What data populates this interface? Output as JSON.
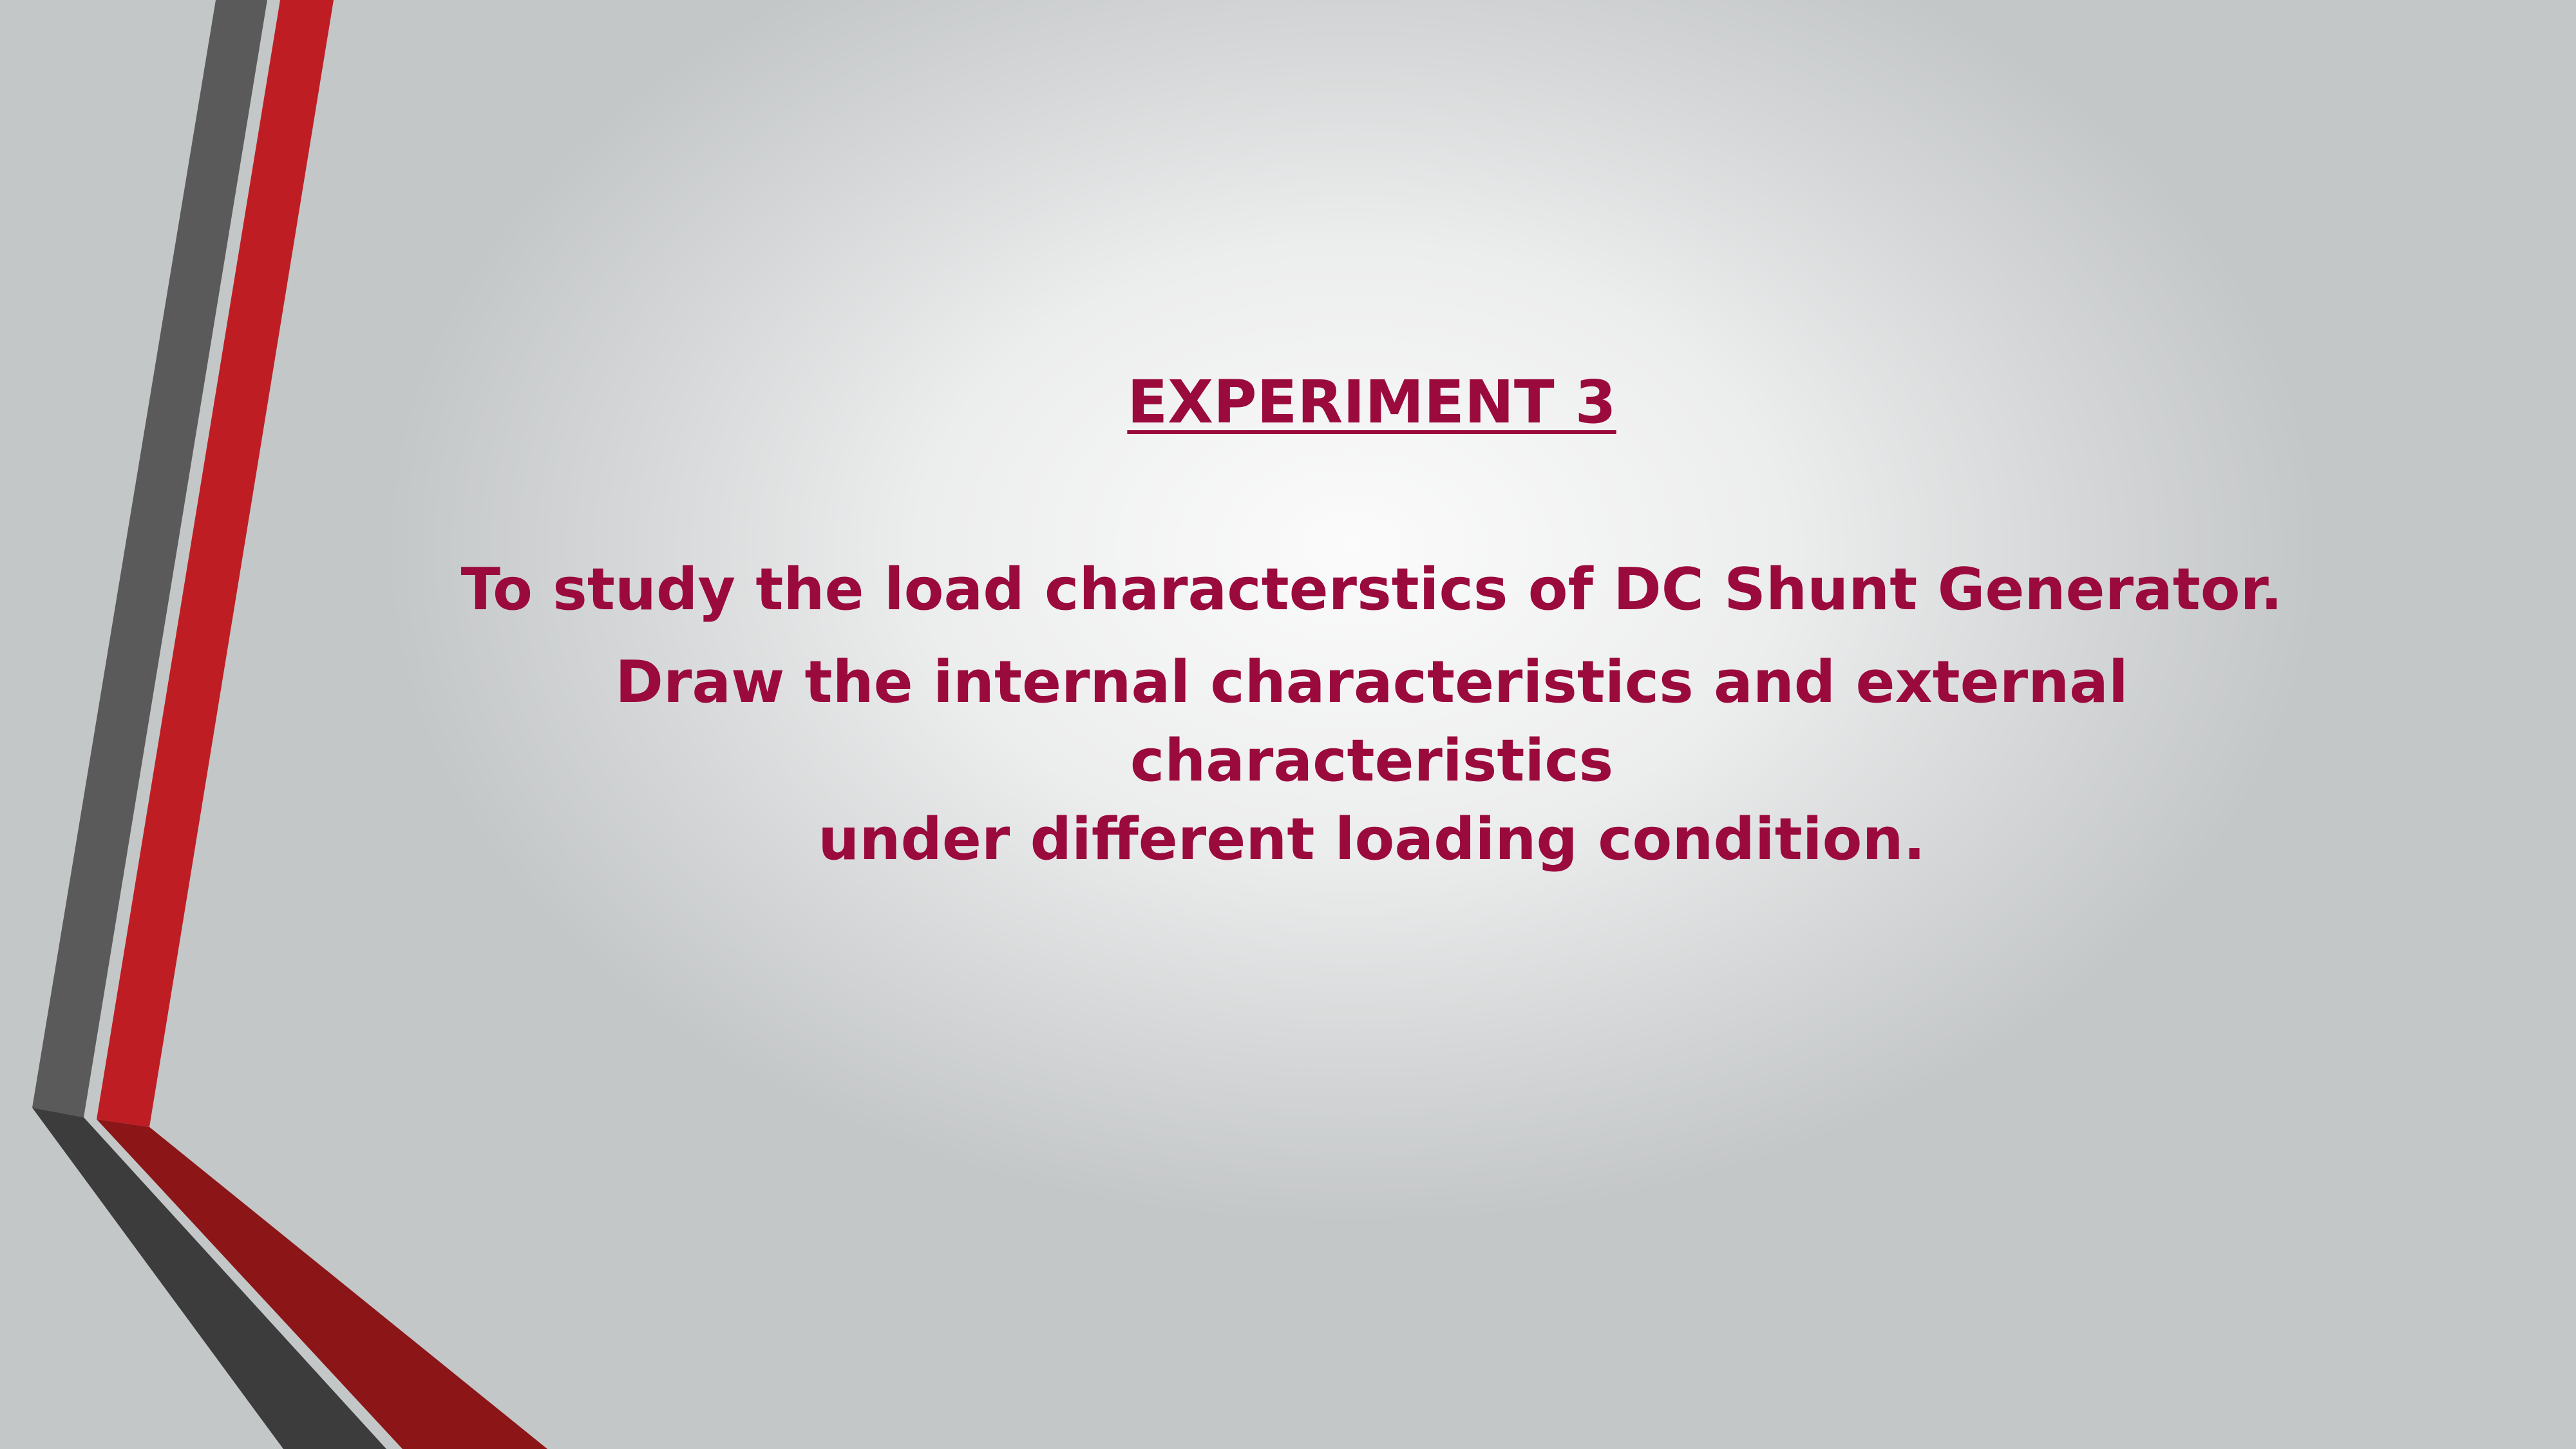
{
  "slide": {
    "title": "EXPERIMENT 3",
    "objective_line_1": "To study the load characterstics of DC Shunt Generator.",
    "objective_line_2a": "Draw the internal characteristics and external characteristics",
    "objective_line_2b": "under different loading condition."
  },
  "colors": {
    "text_accent": "#9b0a3d",
    "stripe_gray": "#5a5a5a",
    "stripe_gray_dark": "#3c3c3c",
    "stripe_red": "#be1e23",
    "stripe_red_dark": "#8c1518"
  }
}
